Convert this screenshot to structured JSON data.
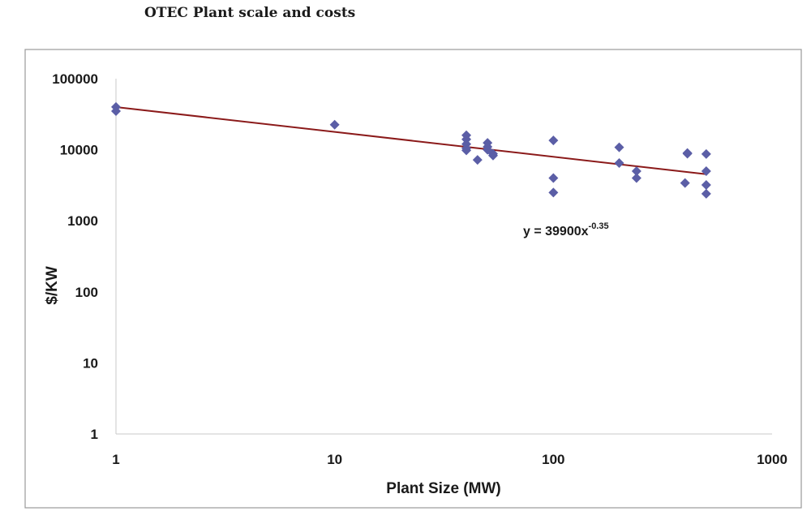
{
  "chart_data": {
    "type": "scatter",
    "title": "OTEC Plant scale and costs",
    "xlabel": "Plant Size (MW)",
    "ylabel": "$/KW",
    "x_scale": "log",
    "y_scale": "log",
    "xlim": [
      1,
      1000
    ],
    "ylim": [
      1,
      100000
    ],
    "x_ticks": [
      "1",
      "10",
      "100",
      "1000"
    ],
    "y_ticks": [
      "1",
      "10",
      "100",
      "1000",
      "10000",
      "100000"
    ],
    "grid": false,
    "legend": "none",
    "marker_color": "#5b5ea6",
    "trendline_color": "#8b1a1a",
    "points": [
      {
        "x": 1,
        "y": 40000
      },
      {
        "x": 1,
        "y": 35000
      },
      {
        "x": 10,
        "y": 22500
      },
      {
        "x": 40,
        "y": 16000
      },
      {
        "x": 40,
        "y": 14000
      },
      {
        "x": 40,
        "y": 12000
      },
      {
        "x": 40,
        "y": 10500
      },
      {
        "x": 40,
        "y": 9800
      },
      {
        "x": 45,
        "y": 7200
      },
      {
        "x": 50,
        "y": 12500
      },
      {
        "x": 50,
        "y": 11000
      },
      {
        "x": 50,
        "y": 10000
      },
      {
        "x": 53,
        "y": 8800
      },
      {
        "x": 53,
        "y": 8300
      },
      {
        "x": 100,
        "y": 13500
      },
      {
        "x": 100,
        "y": 4000
      },
      {
        "x": 100,
        "y": 2500
      },
      {
        "x": 200,
        "y": 10800
      },
      {
        "x": 200,
        "y": 6500
      },
      {
        "x": 240,
        "y": 5000
      },
      {
        "x": 240,
        "y": 4000
      },
      {
        "x": 400,
        "y": 3400
      },
      {
        "x": 410,
        "y": 9000
      },
      {
        "x": 410,
        "y": 8800
      },
      {
        "x": 500,
        "y": 8700
      },
      {
        "x": 500,
        "y": 5000
      },
      {
        "x": 500,
        "y": 3200
      },
      {
        "x": 500,
        "y": 2400
      }
    ],
    "trendline": {
      "type": "power",
      "coefficient": 39900,
      "exponent": -0.35,
      "x_range": [
        1,
        500
      ],
      "equation_base": "y = 39900x",
      "equation_exponent": "-0.35"
    }
  }
}
